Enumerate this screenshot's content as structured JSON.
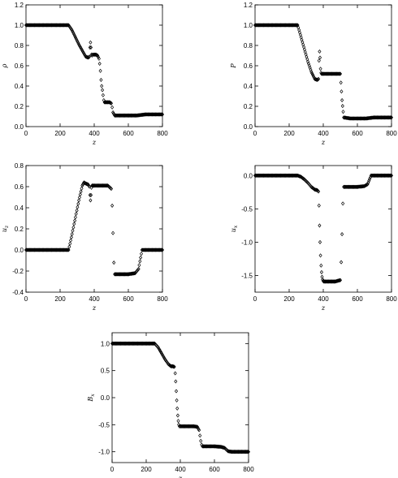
{
  "chart_data": [
    {
      "type": "scatter",
      "title": "",
      "xlabel": "z",
      "ylabel": "ρ",
      "xlim": [
        0,
        800
      ],
      "ylim": [
        0,
        1.2
      ],
      "xticks": [
        "0",
        "200",
        "400",
        "600",
        "800"
      ],
      "yticks": [
        "0.0",
        "0.2",
        "0.4",
        "0.6",
        "0.8",
        "1.0",
        "1.2"
      ],
      "grid": false,
      "legend": "none",
      "series": [
        {
          "x": [
            0,
            100,
            200,
            250,
            270,
            290,
            310,
            330,
            350,
            365,
            372,
            375,
            378,
            381,
            384,
            387,
            390,
            395,
            400,
            410,
            420,
            428,
            432,
            436,
            440,
            444,
            448,
            452,
            456,
            460,
            470,
            480,
            490,
            500,
            505,
            510,
            520,
            560,
            600,
            650,
            700,
            750,
            800
          ],
          "y": [
            1.0,
            1.0,
            1.0,
            1.0,
            0.95,
            0.88,
            0.81,
            0.75,
            0.69,
            0.68,
            0.69,
            0.78,
            0.83,
            0.78,
            0.71,
            0.7,
            0.71,
            0.71,
            0.71,
            0.71,
            0.7,
            0.67,
            0.62,
            0.55,
            0.46,
            0.4,
            0.36,
            0.31,
            0.26,
            0.24,
            0.24,
            0.24,
            0.24,
            0.23,
            0.19,
            0.14,
            0.11,
            0.11,
            0.11,
            0.11,
            0.12,
            0.12,
            0.12
          ]
        }
      ]
    },
    {
      "type": "scatter",
      "title": "",
      "xlabel": "z",
      "ylabel": "P",
      "xlim": [
        0,
        800
      ],
      "ylim": [
        0,
        1.2
      ],
      "xticks": [
        "0",
        "200",
        "400",
        "600",
        "800"
      ],
      "yticks": [
        "0.0",
        "0.2",
        "0.4",
        "0.6",
        "0.8",
        "1.0",
        "1.2"
      ],
      "grid": false,
      "legend": "none",
      "series": [
        {
          "x": [
            0,
            100,
            200,
            250,
            270,
            290,
            310,
            330,
            350,
            365,
            372,
            375,
            378,
            381,
            384,
            387,
            390,
            400,
            420,
            440,
            460,
            480,
            500,
            510,
            520,
            560,
            600,
            650,
            700,
            750,
            800
          ],
          "y": [
            1.0,
            1.0,
            1.0,
            1.0,
            0.88,
            0.76,
            0.64,
            0.54,
            0.47,
            0.46,
            0.47,
            0.65,
            0.74,
            0.68,
            0.57,
            0.53,
            0.52,
            0.52,
            0.52,
            0.52,
            0.52,
            0.52,
            0.52,
            0.26,
            0.09,
            0.08,
            0.08,
            0.08,
            0.09,
            0.09,
            0.09
          ]
        }
      ]
    },
    {
      "type": "scatter",
      "title": "",
      "xlabel": "z",
      "ylabel": "u_z",
      "xlim": [
        0,
        800
      ],
      "ylim": [
        -0.4,
        0.8
      ],
      "xticks": [
        "0",
        "200",
        "400",
        "600",
        "800"
      ],
      "yticks": [
        "-0.4",
        "-0.2",
        "0.0",
        "0.2",
        "0.4",
        "0.6",
        "0.8"
      ],
      "grid": false,
      "legend": "none",
      "series": [
        {
          "x": [
            0,
            100,
            200,
            250,
            270,
            290,
            310,
            330,
            340,
            350,
            365,
            372,
            375,
            378,
            381,
            384,
            387,
            390,
            400,
            420,
            440,
            460,
            480,
            500,
            505,
            510,
            515,
            520,
            560,
            600,
            640,
            660,
            680,
            700,
            750,
            800
          ],
          "y": [
            0.0,
            0.0,
            0.0,
            0.0,
            0.15,
            0.31,
            0.47,
            0.61,
            0.64,
            0.63,
            0.62,
            0.6,
            0.52,
            0.47,
            0.52,
            0.59,
            0.61,
            0.61,
            0.61,
            0.61,
            0.61,
            0.61,
            0.61,
            0.58,
            0.42,
            0.16,
            -0.12,
            -0.23,
            -0.23,
            -0.23,
            -0.22,
            -0.18,
            0.0,
            0.0,
            0.0,
            0.0
          ]
        }
      ]
    },
    {
      "type": "scatter",
      "title": "",
      "xlabel": "z",
      "ylabel": "u_x",
      "xlim": [
        0,
        800
      ],
      "ylim": [
        -1.75,
        0.15
      ],
      "xticks": [
        "0",
        "200",
        "400",
        "600",
        "800"
      ],
      "yticks": [
        "-1.5",
        "-1.0",
        "-0.5",
        "0.0"
      ],
      "grid": false,
      "legend": "none",
      "series": [
        {
          "x": [
            0,
            100,
            200,
            250,
            270,
            290,
            310,
            330,
            350,
            365,
            372,
            375,
            378,
            381,
            384,
            387,
            390,
            393,
            396,
            399,
            402,
            410,
            440,
            470,
            500,
            505,
            510,
            515,
            520,
            560,
            600,
            640,
            660,
            680,
            700,
            750,
            800
          ],
          "y": [
            0.0,
            0.0,
            0.0,
            0.0,
            -0.02,
            -0.06,
            -0.11,
            -0.17,
            -0.21,
            -0.22,
            -0.24,
            -0.45,
            -0.75,
            -1.0,
            -1.2,
            -1.35,
            -1.45,
            -1.52,
            -1.56,
            -1.58,
            -1.59,
            -1.59,
            -1.59,
            -1.59,
            -1.57,
            -1.3,
            -0.88,
            -0.42,
            -0.17,
            -0.17,
            -0.17,
            -0.16,
            -0.13,
            0.0,
            0.0,
            0.0,
            0.0
          ]
        }
      ]
    },
    {
      "type": "scatter",
      "title": "",
      "xlabel": "z",
      "ylabel": "B_x",
      "xlim": [
        0,
        800
      ],
      "ylim": [
        -1.2,
        1.2
      ],
      "xticks": [
        "0",
        "200",
        "400",
        "600",
        "800"
      ],
      "yticks": [
        "-1.0",
        "-0.5",
        "0.0",
        "0.5",
        "1.0"
      ],
      "grid": false,
      "legend": "none",
      "series": [
        {
          "x": [
            0,
            100,
            200,
            250,
            270,
            290,
            310,
            330,
            345,
            355,
            365,
            370,
            373,
            376,
            379,
            382,
            385,
            388,
            391,
            395,
            400,
            440,
            480,
            500,
            510,
            515,
            520,
            525,
            530,
            560,
            600,
            640,
            660,
            680,
            700,
            750,
            800
          ],
          "y": [
            1.0,
            1.0,
            1.0,
            1.0,
            0.93,
            0.82,
            0.71,
            0.62,
            0.58,
            0.58,
            0.57,
            0.45,
            0.3,
            0.12,
            -0.05,
            -0.2,
            -0.33,
            -0.43,
            -0.5,
            -0.53,
            -0.53,
            -0.53,
            -0.53,
            -0.54,
            -0.6,
            -0.7,
            -0.8,
            -0.87,
            -0.9,
            -0.9,
            -0.9,
            -0.91,
            -0.93,
            -0.99,
            -1.0,
            -1.0,
            -1.0
          ]
        }
      ]
    }
  ]
}
